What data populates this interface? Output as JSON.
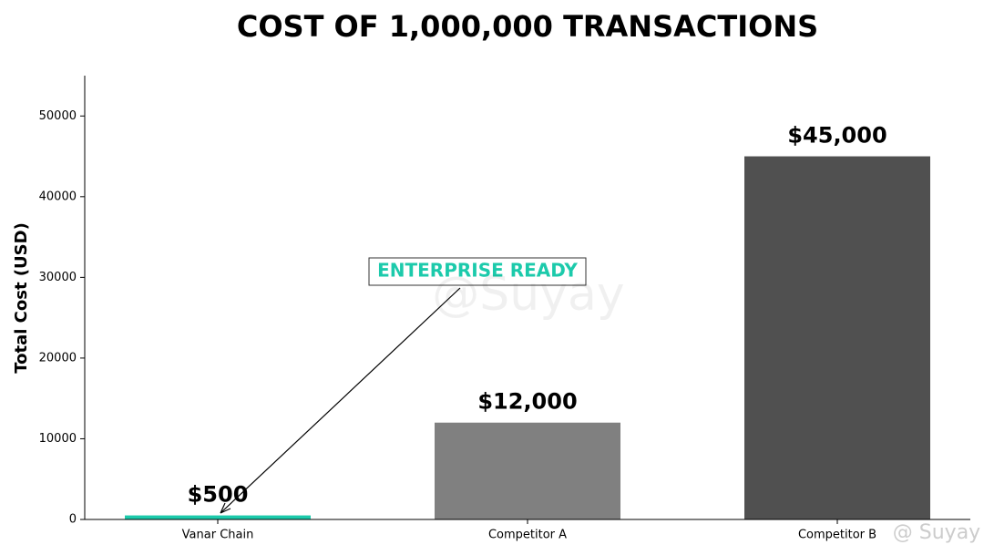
{
  "chart_data": {
    "type": "bar",
    "title": "COST OF 1,000,000 TRANSACTIONS",
    "y_label": "Total Cost (USD)",
    "categories": [
      "Vanar Chain",
      "Competitor A",
      "Competitor B"
    ],
    "values": [
      500,
      12000,
      45000
    ],
    "value_labels": [
      "$500",
      "$12,000",
      "$45,000"
    ],
    "colors": [
      "#1ccaab",
      "#808080",
      "#505050"
    ],
    "ylim": [
      0,
      55000
    ],
    "yticks": [
      0,
      10000,
      20000,
      30000,
      40000,
      50000
    ],
    "annotation": {
      "text": "ENTERPRISE READY",
      "color": "#1ccaab"
    },
    "watermarks": [
      "@Suyay",
      "@ Suyay"
    ]
  }
}
